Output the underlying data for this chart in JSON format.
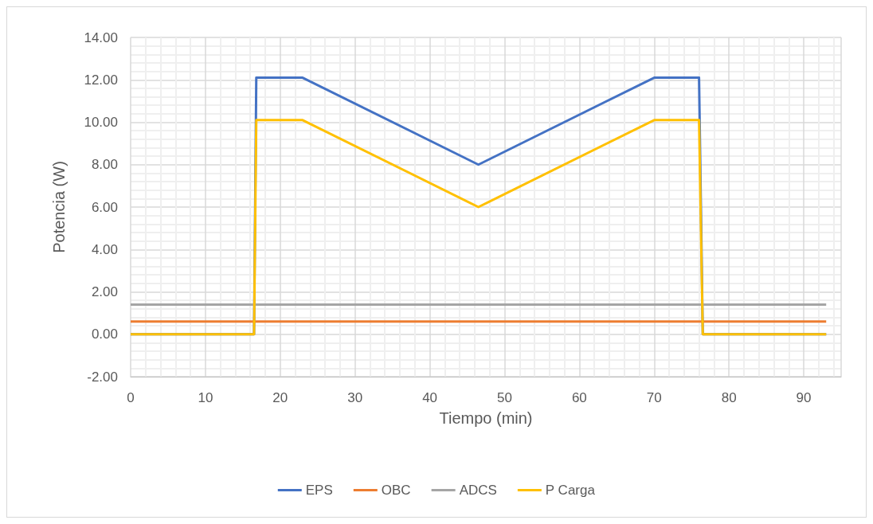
{
  "chart_data": {
    "type": "line",
    "xlabel": "Tiempo (min)",
    "ylabel": "Potencia (W)",
    "xlim": [
      0,
      95
    ],
    "xticks": [
      0,
      10,
      20,
      30,
      40,
      50,
      60,
      70,
      80,
      90
    ],
    "ylim": [
      -2,
      14
    ],
    "yticks": [
      {
        "value": -2,
        "label": "-2.00"
      },
      {
        "value": 0,
        "label": "0.00"
      },
      {
        "value": 2,
        "label": "2.00"
      },
      {
        "value": 4,
        "label": "4.00"
      },
      {
        "value": 6,
        "label": "6.00"
      },
      {
        "value": 8,
        "label": "8.00"
      },
      {
        "value": 10,
        "label": "10.00"
      },
      {
        "value": 12,
        "label": "12.00"
      },
      {
        "value": 14,
        "label": "14.00"
      }
    ],
    "grid": true,
    "legend": "bottom",
    "marker": "none",
    "line_style": "solid",
    "series": [
      {
        "name": "EPS",
        "color": "#4472c4",
        "x": [
          0,
          16.5,
          16.8,
          23,
          46.5,
          70,
          76,
          76.5,
          93
        ],
        "values": [
          0,
          0,
          12.1,
          12.1,
          8.0,
          12.1,
          12.1,
          0,
          0
        ]
      },
      {
        "name": "OBC",
        "color": "#ed7d31",
        "x": [
          0,
          93
        ],
        "values": [
          0.6,
          0.6
        ]
      },
      {
        "name": "ADCS",
        "color": "#a5a5a5",
        "x": [
          0,
          93
        ],
        "values": [
          1.4,
          1.4
        ]
      },
      {
        "name": "P Carga",
        "color": "#ffc000",
        "x": [
          0,
          16.5,
          16.8,
          23,
          46.5,
          70,
          76,
          76.5,
          93
        ],
        "values": [
          0,
          0,
          10.1,
          10.1,
          6.0,
          10.1,
          10.1,
          0,
          0
        ]
      }
    ]
  }
}
